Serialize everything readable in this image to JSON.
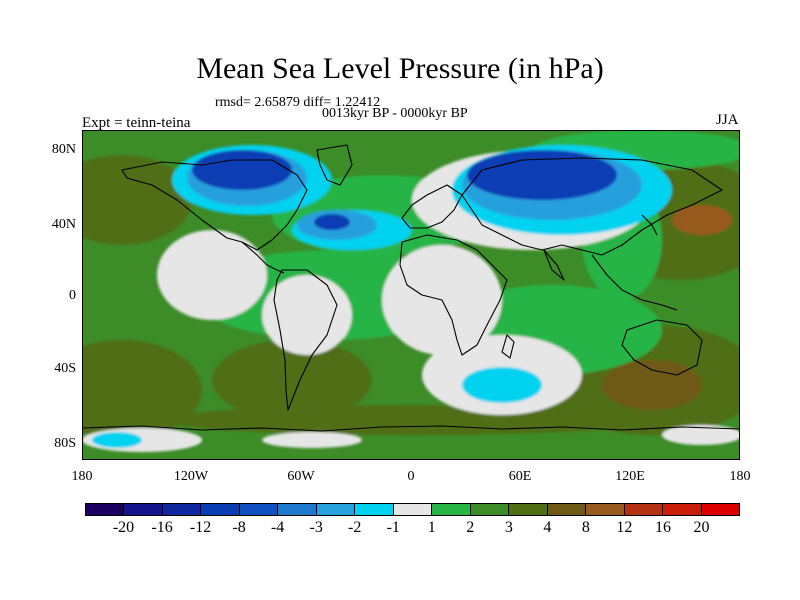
{
  "title": "Mean Sea Level Pressure (in hPa)",
  "stats": "rmsd= 2.65879 diff= 1.22412",
  "period": "0013kyr BP - 0000kyr BP",
  "experiment": "Expt = teinn-teina",
  "season": "JJA",
  "latitude_labels": [
    "80N",
    "40N",
    "0",
    "40S",
    "80S"
  ],
  "longitude_labels": [
    "180",
    "120W",
    "60W",
    "0",
    "60E",
    "120E",
    "180"
  ],
  "colorbar": {
    "labels": [
      "-20",
      "-16",
      "-12",
      "-8",
      "-4",
      "-3",
      "-2",
      "-1",
      "1",
      "2",
      "3",
      "4",
      "8",
      "12",
      "16",
      "20"
    ],
    "colors": [
      "#1a0060",
      "#14148c",
      "#0f28a0",
      "#0a3cb4",
      "#1050c0",
      "#1e78cc",
      "#28a0dc",
      "#00d2f0",
      "#e6e6e6",
      "#28b446",
      "#3c8c28",
      "#506e14",
      "#6e5a14",
      "#965a1e",
      "#b43214",
      "#c81e0a",
      "#dc0000"
    ]
  },
  "colors": {
    "low_deep": "#0a3cb4",
    "low_mid": "#28a0dc",
    "low_weak": "#00d2f0",
    "neutral": "#e6e6e6",
    "pos_1": "#28b446",
    "pos_2": "#3c8c28",
    "pos_3": "#506e14",
    "pos_4": "#6e5a14",
    "pos_5": "#965a1e"
  }
}
